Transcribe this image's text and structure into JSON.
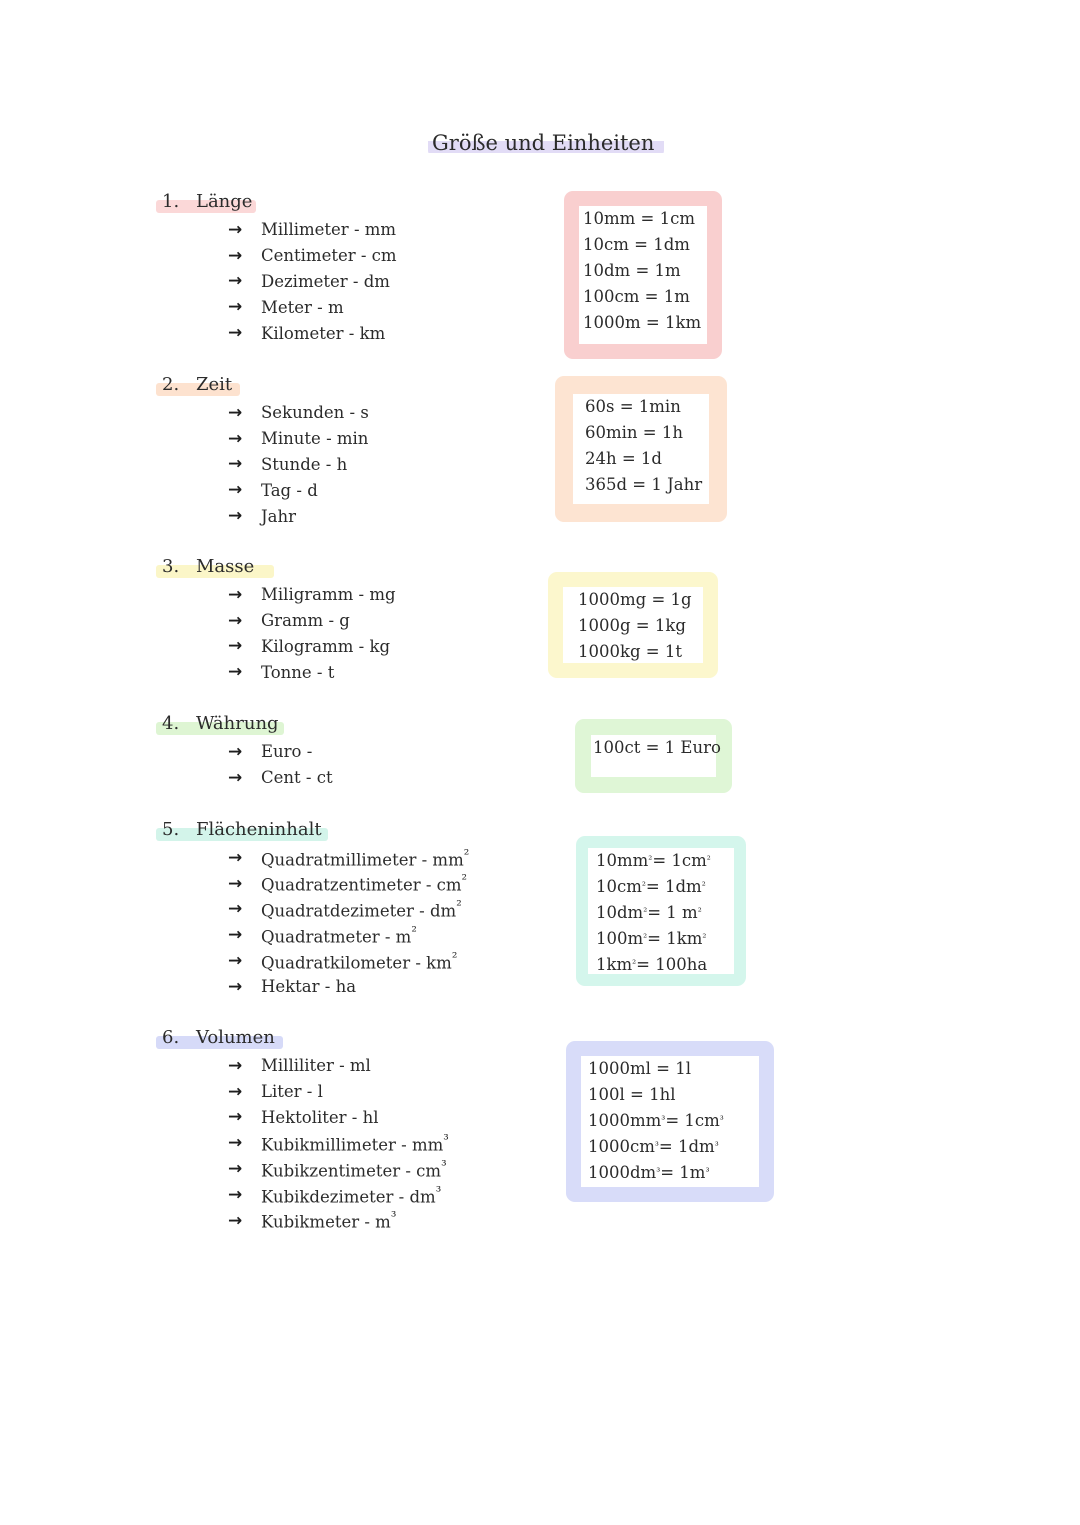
{
  "title": "Größe und Einheiten",
  "sections": [
    {
      "number": "1.",
      "name": "Länge",
      "highlight_color": "#fbd8d8",
      "items": [
        "Millimeter - mm",
        "Centimeter - cm",
        "Dezimeter - dm",
        "Meter - m",
        "Kilometer - km"
      ],
      "box_color": "#f9cfcf",
      "conversions": [
        "10mm = 1cm",
        "10cm = 1dm",
        "10dm = 1m",
        "100cm = 1m",
        "1000m = 1km"
      ]
    },
    {
      "number": "2.",
      "name": "Zeit",
      "highlight_color": "#fde2cf",
      "items": [
        "Sekunden - s",
        "Minute - min",
        "Stunde - h",
        "Tag - d",
        "Jahr"
      ],
      "box_color": "#fde4d2",
      "conversions": [
        "60s = 1min",
        "60min = 1h",
        "24h = 1d",
        "365d = 1 Jahr"
      ]
    },
    {
      "number": "3.",
      "name": "Masse",
      "highlight_color": "#fbf6c8",
      "items": [
        "Miligramm - mg",
        "Gramm - g",
        "Kilogramm - kg",
        "Tonne - t"
      ],
      "box_color": "#fcf7cd",
      "conversions": [
        "1000mg = 1g",
        "1000g = 1kg",
        "1000kg = 1t"
      ]
    },
    {
      "number": "4.",
      "name": "Währung",
      "highlight_color": "#def5d3",
      "items": [
        "Euro -",
        "Cent - ct"
      ],
      "box_color": "#dff6d6",
      "conversions": [
        "100ct = 1 Euro"
      ]
    },
    {
      "number": "5.",
      "name": "Flächeninhalt",
      "highlight_color": "#d3f4ea",
      "items": [
        "Quadratmillimeter - mm²",
        "Quadratzentimeter - cm²",
        "Quadratdezimeter - dm²",
        "Quadratmeter - m²",
        "Quadratkilometer - km²",
        "Hektar - ha"
      ],
      "box_color": "#d4f6ec",
      "conversions": [
        "10mm² = 1cm²",
        "10cm² = 1dm²",
        "10dm² = 1 m²",
        "100m² = 1km²",
        "1km² = 100ha"
      ]
    },
    {
      "number": "6.",
      "name": "Volumen",
      "highlight_color": "#d6daf8",
      "items": [
        "Milliliter - ml",
        "Liter - l",
        "Hektoliter - hl",
        "Kubikmillimeter - mm³",
        "Kubikzentimeter - cm³",
        "Kubikdezimeter - dm³",
        "Kubikmeter - m³"
      ],
      "box_color": "#d8dcf9",
      "conversions": [
        "1000ml = 1l",
        "100l = 1hl",
        "1000mm³ = 1cm³",
        "1000cm³ = 1dm³",
        "1000dm³ = 1m³"
      ]
    }
  ]
}
